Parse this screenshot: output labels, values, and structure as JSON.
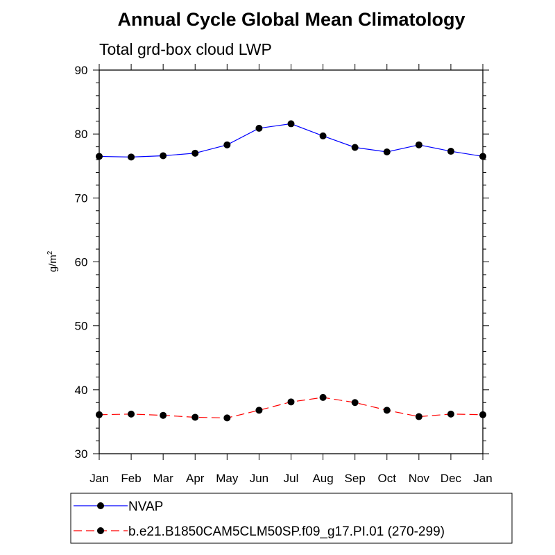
{
  "chart_data": {
    "type": "line",
    "title": "Annual Cycle Global Mean Climatology",
    "subtitle": "Total grd-box cloud LWP",
    "xlabel": "",
    "ylabel": "g/m",
    "ylabel_superscript": "2",
    "ylim": [
      30,
      90
    ],
    "yticks": [
      "30",
      "40",
      "50",
      "60",
      "70",
      "80",
      "90"
    ],
    "categories": [
      "Jan",
      "Feb",
      "Mar",
      "Apr",
      "May",
      "Jun",
      "Jul",
      "Aug",
      "Sep",
      "Oct",
      "Nov",
      "Dec",
      "Jan"
    ],
    "series": [
      {
        "name": "NVAP",
        "color": "#0000ff",
        "dash": "solid",
        "values": [
          76.5,
          76.4,
          76.6,
          77.0,
          78.3,
          80.9,
          81.6,
          79.7,
          77.9,
          77.2,
          78.3,
          77.3,
          76.5
        ]
      },
      {
        "name": "b.e21.B1850CAM5CLM50SP.f09_g17.PI.01 (270-299)",
        "color": "#ff0000",
        "dash": "dashed",
        "values": [
          36.1,
          36.2,
          36.0,
          35.7,
          35.6,
          36.8,
          38.1,
          38.8,
          38.0,
          36.8,
          35.8,
          36.2,
          36.1
        ]
      }
    ],
    "legend_position": "bottom-left"
  }
}
